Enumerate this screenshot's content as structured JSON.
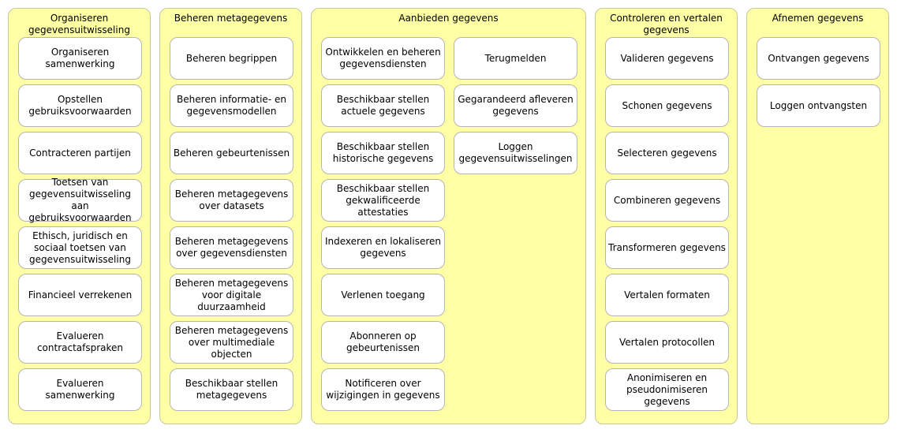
{
  "groups": [
    {
      "title": "Organiseren gegevensuitwisseling",
      "columns": [
        [
          "Organiseren samenwerking",
          "Opstellen gebruiksvoorwaarden",
          "Contracteren partijen",
          "Toetsen van gegevensuitwisseling aan gebruiksvoorwaarden",
          "Ethisch, juridisch en sociaal toetsen van gegevensuitwisseling",
          "Financieel verrekenen",
          "Evalueren contractafspraken",
          "Evalueren samenwerking"
        ]
      ]
    },
    {
      "title": "Beheren metagegevens",
      "columns": [
        [
          "Beheren begrippen",
          "Beheren informatie- en gegevensmodellen",
          "Beheren gebeurtenissen",
          "Beheren metagegevens over datasets",
          "Beheren metagegevens over gegevensdiensten",
          "Beheren metagegevens voor digitale duurzaamheid",
          "Beheren metagegevens over multimediale objecten",
          "Beschikbaar stellen metagegevens"
        ]
      ]
    },
    {
      "title": "Aanbieden gegevens",
      "columns": [
        [
          "Ontwikkelen en beheren gegevensdiensten",
          "Beschikbaar stellen actuele gegevens",
          "Beschikbaar stellen historische gegevens",
          "Beschikbaar stellen gekwalificeerde attestaties",
          "Indexeren en lokaliseren gegevens",
          "Verlenen toegang",
          "Abonneren op gebeurtenissen",
          "Notificeren over wijzigingen in gegevens"
        ],
        [
          "Terugmelden",
          "Gegarandeerd afleveren gegevens",
          "Loggen gegevensuitwisselingen"
        ]
      ]
    },
    {
      "title": "Controleren en vertalen gegevens",
      "columns": [
        [
          "Valideren gegevens",
          "Schonen gegevens",
          "Selecteren gegevens",
          "Combineren gegevens",
          "Transformeren gegevens",
          "Vertalen formaten",
          "Vertalen protocollen",
          "Anonimiseren en pseudonimiseren gegevens"
        ]
      ]
    },
    {
      "title": "Afnemen gegevens",
      "columns": [
        [
          "Ontvangen gegevens",
          "Loggen ontvangsten"
        ]
      ]
    }
  ]
}
